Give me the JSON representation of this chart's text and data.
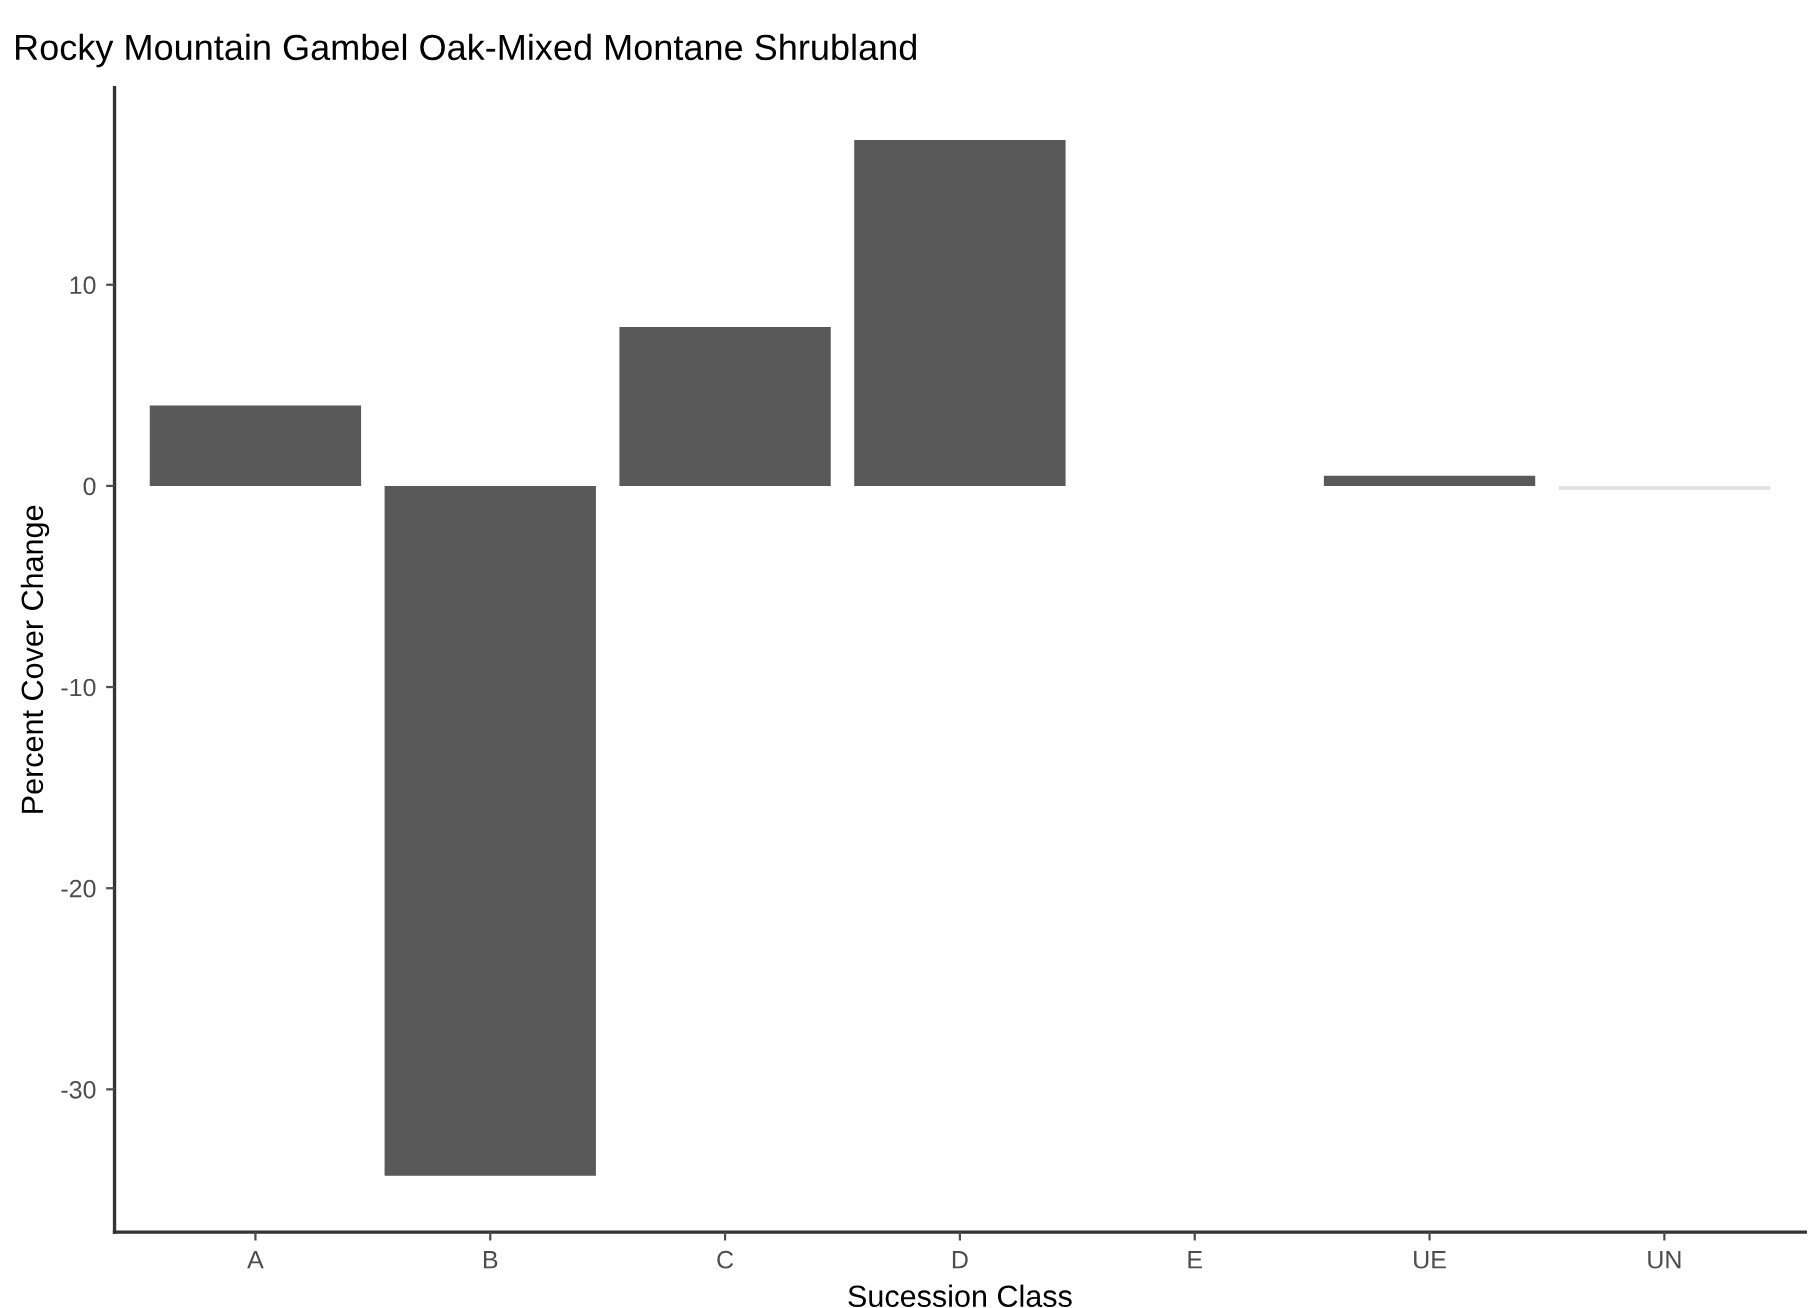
{
  "chart_data": {
    "type": "bar",
    "title": "Rocky Mountain Gambel Oak-Mixed Montane Shrubland",
    "xlabel": "Sucession Class",
    "ylabel": "Percent Cover Change",
    "categories": [
      "A",
      "B",
      "C",
      "D",
      "E",
      "UE",
      "UN"
    ],
    "values": [
      4.0,
      -34.3,
      7.9,
      17.2,
      0,
      0.5,
      -0.2
    ],
    "colors": [
      "#595959",
      "#595959",
      "#595959",
      "#595959",
      "#595959",
      "#595959",
      "#e3e3e3"
    ],
    "ylim": [
      -37.1,
      19.8
    ],
    "yticks": [
      -30,
      -20,
      -10,
      0,
      10
    ],
    "grid": false
  }
}
